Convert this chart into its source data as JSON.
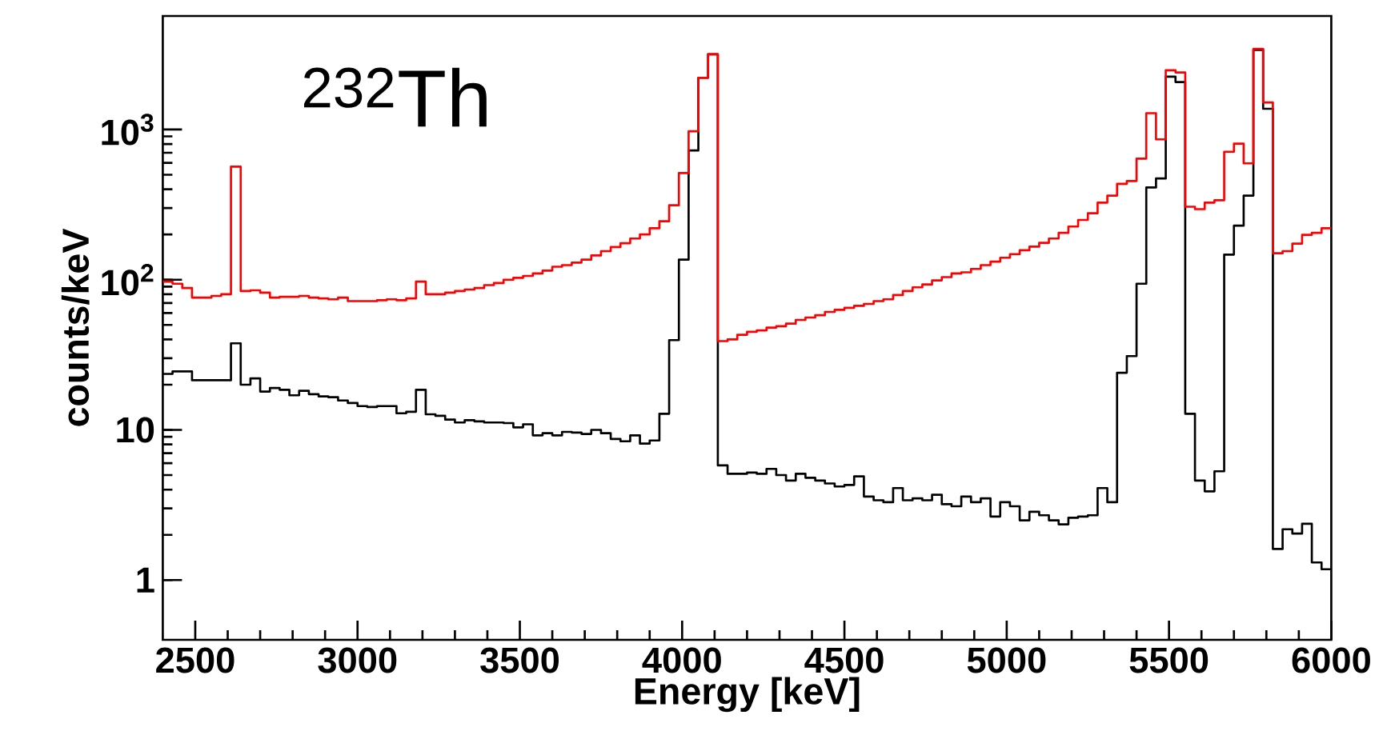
{
  "chart_data": {
    "type": "histogram",
    "xlabel": "Energy [keV]",
    "ylabel": "counts/keV",
    "annotations": [
      "$^{232}$Th"
    ],
    "log": true,
    "xlim": [
      2400,
      6000
    ],
    "ylim": [
      0.4,
      5700
    ],
    "xticks": [
      2500,
      3000,
      3500,
      4000,
      4500,
      5000,
      5500,
      6000
    ],
    "yticks": [
      1,
      10,
      {
        "value": 100,
        "label": "10$^{2}$"
      },
      {
        "value": 1000,
        "label": "10$^{3}$"
      }
    ],
    "bins": [
      2400,
      2430,
      2460,
      2490,
      2520,
      2550,
      2580,
      2610,
      2640,
      2670,
      2700,
      2730,
      2760,
      2790,
      2820,
      2850,
      2880,
      2910,
      2940,
      2970,
      3000,
      3030,
      3060,
      3090,
      3120,
      3150,
      3180,
      3210,
      3240,
      3270,
      3300,
      3330,
      3360,
      3390,
      3420,
      3450,
      3480,
      3510,
      3540,
      3570,
      3600,
      3630,
      3660,
      3690,
      3720,
      3750,
      3780,
      3810,
      3840,
      3870,
      3900,
      3930,
      3960,
      3990,
      4020,
      4050,
      4080,
      4110,
      4140,
      4170,
      4200,
      4230,
      4260,
      4290,
      4320,
      4350,
      4380,
      4410,
      4440,
      4470,
      4500,
      4530,
      4560,
      4590,
      4620,
      4650,
      4680,
      4710,
      4740,
      4770,
      4800,
      4830,
      4860,
      4890,
      4920,
      4950,
      4980,
      5010,
      5040,
      5070,
      5100,
      5130,
      5160,
      5190,
      5220,
      5250,
      5280,
      5310,
      5340,
      5370,
      5400,
      5430,
      5460,
      5490,
      5520,
      5550,
      5580,
      5610,
      5640,
      5670,
      5700,
      5730,
      5760,
      5790,
      5820,
      5850,
      5880,
      5910,
      5940,
      5970,
      6000
    ],
    "series": [
      {
        "color": "#000000",
        "values": [
          23.6,
          24.5,
          24.5,
          21.4,
          21.4,
          21.4,
          21.4,
          37.7,
          20,
          22,
          18,
          19,
          18.5,
          17,
          18.2,
          17.3,
          16.7,
          16.5,
          15.7,
          15.1,
          14.4,
          14.2,
          14.4,
          14.4,
          12.9,
          13.2,
          18.5,
          12.7,
          12.4,
          11.7,
          11.2,
          11.6,
          11.4,
          11.2,
          11.2,
          11.1,
          10.4,
          10.9,
          9.2,
          9.5,
          9.2,
          9.7,
          9.6,
          9.4,
          10,
          9.5,
          8.7,
          8.4,
          9.2,
          8.1,
          8.5,
          12.8,
          39.6,
          136,
          725,
          2210,
          3170,
          5.8,
          5.1,
          5.1,
          5.2,
          5.1,
          5.5,
          5.0,
          4.6,
          5.1,
          4.8,
          4.6,
          4.4,
          4.2,
          4.3,
          4.9,
          3.6,
          3.4,
          3.3,
          4.1,
          3.4,
          3.5,
          3.4,
          3.7,
          3.2,
          3.1,
          3.6,
          3.3,
          3.5,
          2.65,
          3.3,
          3.1,
          2.5,
          2.85,
          2.7,
          2.5,
          2.35,
          2.6,
          2.65,
          2.7,
          4.1,
          3.3,
          24,
          31,
          94,
          411,
          472,
          2250,
          2070,
          12.8,
          4.6,
          3.9,
          5.3,
          147,
          229,
          363,
          3390,
          1375,
          1.61,
          2.18,
          2.04,
          2.37,
          1.31,
          1.18
        ]
      },
      {
        "color": "#ff0000",
        "values": [
          97,
          94,
          88,
          76,
          76,
          78,
          80,
          566,
          84,
          85,
          82,
          76,
          77,
          77,
          78,
          76,
          75,
          74,
          76,
          72,
          72,
          72,
          73,
          74,
          73,
          75,
          97,
          80,
          80,
          82,
          84,
          86,
          88,
          92,
          95,
          100,
          103,
          106,
          110,
          115,
          122,
          125,
          130,
          136,
          145,
          155,
          165,
          175,
          188,
          200,
          220,
          245,
          313,
          513,
          973,
          2210,
          3170,
          39,
          40,
          43,
          45,
          46,
          48,
          49,
          51,
          54,
          56,
          58,
          61,
          63,
          65,
          67,
          69,
          72,
          74,
          79,
          84,
          89,
          93,
          99,
          104,
          110,
          112,
          118,
          125,
          132,
          140,
          148,
          157,
          166,
          176,
          188,
          205,
          226,
          250,
          277,
          326,
          363,
          435,
          454,
          640,
          1285,
          860,
          2480,
          2400,
          306,
          295,
          326,
          338,
          711,
          805,
          595,
          3440,
          1515,
          150,
          155,
          174,
          199,
          205,
          220
        ]
      }
    ]
  }
}
